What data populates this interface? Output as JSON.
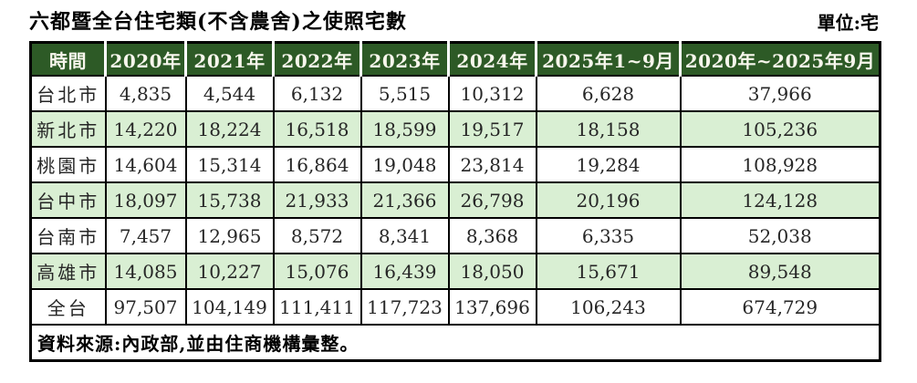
{
  "title": "六都暨全台住宅類(不含農舍)之使照宅數",
  "unit_label": "單位:宅",
  "source_note": "資料來源:內政部,並由住商機構彙整。",
  "colors": {
    "header_bg": "#2d5a26",
    "header_text": "#f7f6ec",
    "row_alt_bg": "#d9efd3",
    "border": "#000000",
    "text": "#262626"
  },
  "chart_data": {
    "type": "table",
    "title": "六都暨全台住宅類(不含農舍)之使照宅數",
    "unit": "單位:宅",
    "columns": [
      "時間",
      "2020年",
      "2021年",
      "2022年",
      "2023年",
      "2024年",
      "2025年1~9月",
      "2020年~2025年9月"
    ],
    "rows": [
      {
        "label": "台北市",
        "values": [
          "4,835",
          "4,544",
          "6,132",
          "5,515",
          "10,312",
          "6,628",
          "37,966"
        ]
      },
      {
        "label": "新北市",
        "values": [
          "14,220",
          "18,224",
          "16,518",
          "18,599",
          "19,517",
          "18,158",
          "105,236"
        ]
      },
      {
        "label": "桃園市",
        "values": [
          "14,604",
          "15,314",
          "16,864",
          "19,048",
          "23,814",
          "19,284",
          "108,928"
        ]
      },
      {
        "label": "台中市",
        "values": [
          "18,097",
          "15,738",
          "21,933",
          "21,366",
          "26,798",
          "20,196",
          "124,128"
        ]
      },
      {
        "label": "台南市",
        "values": [
          "7,457",
          "12,965",
          "8,572",
          "8,341",
          "8,368",
          "6,335",
          "52,038"
        ]
      },
      {
        "label": "高雄市",
        "values": [
          "14,085",
          "10,227",
          "15,076",
          "16,439",
          "18,050",
          "15,671",
          "89,548"
        ]
      },
      {
        "label": "全台",
        "values": [
          "97,507",
          "104,149",
          "111,411",
          "117,723",
          "137,696",
          "106,243",
          "674,729"
        ]
      }
    ],
    "source": "資料來源:內政部,並由住商機構彙整。"
  }
}
